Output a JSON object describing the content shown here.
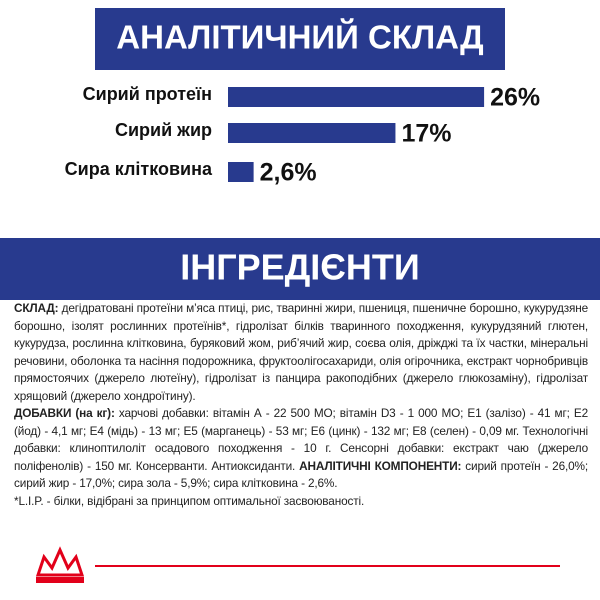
{
  "chart_data": {
    "type": "bar",
    "orientation": "horizontal",
    "title": "АНАЛІТИЧНИЙ СКЛАД",
    "categories": [
      "Сирий протеїн",
      "Сирий жир",
      "Сира клітковина"
    ],
    "values": [
      26,
      17,
      2.6
    ],
    "value_labels": [
      "26%",
      "17%",
      "2,6%"
    ],
    "color": "#283a8e"
  },
  "ingredients": {
    "title": "ІНГРЕДІЄНТИ",
    "paragraphs": [
      {
        "parts": [
          {
            "text": "СКЛАД:",
            "bold": true
          },
          {
            "text": " дегідратовані протеїни м’яса птиці, рис, тваринні жири, пшениця, пшеничне борошно, кукурудзяне борошно, ізолят рослинних протеїнів*, гідролізат білків тваринного походження, кукурудзяний глютен, кукурудза, рослинна клітковина, буряковий жом, риб’ячий жир, соєва олія, дріжджі та їх частки, мінеральні речовини, оболонка та насіння подорожника, фруктоолігосахариди, олія огірочника, екстракт чорнобривців прямостоячих (джерело лютеїну), гідролізат із панцира ракоподібних (джерело глюкозаміну), гідролізат хрящовий (джерело хондроїтину).",
            "bold": false
          }
        ]
      },
      {
        "parts": [
          {
            "text": "ДОБАВКИ (на кг):",
            "bold": true
          },
          {
            "text": " харчові добавки: вітамін А - 22 500 МО; вітамін D3 - 1 000 МО; Е1 (залізо) - 41 мг; Е2 (йод) - 4,1 мг; Е4 (мідь) - 13 мг; Е5 (марганець) - 53 мг; Е6 (цинк) - 132 мг; Е8 (селен) - 0,09 мг. Технологічні добавки: клиноптилоліт осадового походження - 10 г. Сенсорні добавки: екстракт чаю (джерело поліфенолів) - 150 мг. Консерванти. Антиоксиданти. ",
            "bold": false
          },
          {
            "text": "АНАЛІТИЧНІ КОМПОНЕНТИ:",
            "bold": true
          },
          {
            "text": " сирий протеїн - 26,0%; сирий жир - 17,0%; сира зола - 5,9%; сира клітковина - 2,6%.",
            "bold": false
          }
        ]
      },
      {
        "parts": [
          {
            "text": "*L.I.P. - білки, відібрані за принципом оптимальної засвоюваності.",
            "bold": false
          }
        ]
      }
    ]
  }
}
